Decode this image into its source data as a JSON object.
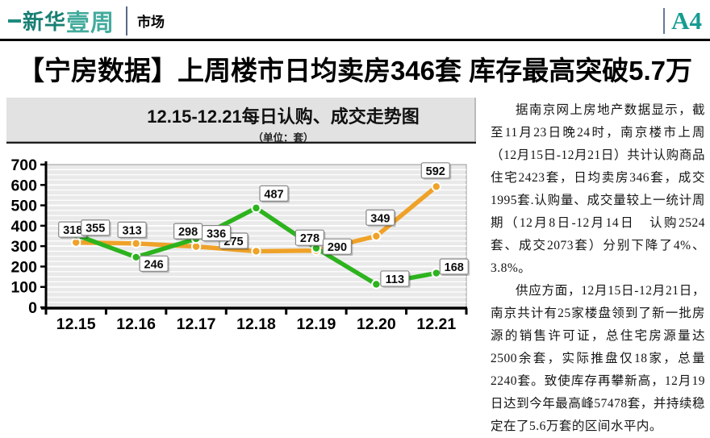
{
  "masthead": {
    "logo_part1": "新华",
    "logo_part2": "壹周",
    "section": "市场",
    "page_code": "A4"
  },
  "headline": "【宁房数据】上周楼市日均卖房346套 库存最高突破5.7万",
  "article": {
    "paragraphs": [
      "据南京网上房地产数据显示，截至11月23日晚24时，南京楼市上周（12月15日-12月21日）共计认购商品住宅2423套，日均卖房346套，成交1995套.认购量、成交量较上一统计周期（12月8日-12月14日　认购2524套、成交2073套）分别下降了4%、3.8%。",
      "供应方面，12月15日-12月21日，南京共计有25家楼盘领到了新一批房源的销售许可证，总住宅房源量达2500余套，实际推盘仅18家，总量2240套。致使库存再攀新高，12月19日达到今年最高峰57478套，并持续稳定在了5.6万套的区间水平内。"
    ]
  },
  "chart_data": {
    "type": "line",
    "title": "12.15-12.21每日认购、成交走势图",
    "subtitle": "（单位：套）",
    "categories": [
      "12.15",
      "12.16",
      "12.17",
      "12.18",
      "12.19",
      "12.20",
      "12.21"
    ],
    "series": [
      {
        "name": "认购",
        "color": "#EFA228",
        "values": [
          318,
          313,
          298,
          275,
          278,
          349,
          592
        ]
      },
      {
        "name": "成交",
        "color": "#2CB31D",
        "values": [
          355,
          246,
          336,
          487,
          290,
          113,
          168
        ]
      }
    ],
    "ylim": [
      0,
      700
    ],
    "yticks": [
      0,
      100,
      200,
      300,
      400,
      500,
      600,
      700
    ],
    "minor_grid_step": 25,
    "grid": true,
    "legend": "none",
    "plot_bg": "#e9e9e9",
    "grid_color": "#ffffff",
    "layout": {
      "label_offsets": [
        [
          [
            -4,
            -16
          ],
          [
            -5,
            -17
          ],
          [
            -10,
            -19
          ],
          [
            -28,
            -13
          ],
          [
            -8,
            -16
          ],
          [
            5,
            -23
          ],
          [
            -1,
            -20
          ]
        ],
        [
          [
            24,
            -9
          ],
          [
            22,
            8
          ],
          [
            25,
            -7
          ],
          [
            22,
            -18
          ],
          [
            26,
            -2
          ],
          [
            23,
            -7
          ],
          [
            22,
            -8
          ]
        ]
      ]
    }
  }
}
